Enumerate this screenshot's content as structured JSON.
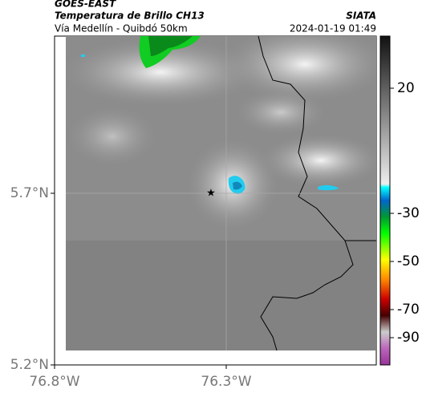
{
  "header": {
    "product": "GOES-EAST",
    "title": "Temperatura de Brillo CH13",
    "subtitle": "Vía Medellín - Quibdó 50km",
    "source": "SIATA",
    "datetime": "2024-01-19 01:49"
  },
  "axes": {
    "latitude_labels": [
      "5.7°N",
      "5.2°N"
    ],
    "longitude_labels": [
      "76.8°W",
      "76.3°W"
    ]
  },
  "colorbar": {
    "tick_labels": [
      20,
      -30,
      -50,
      -70,
      -90
    ]
  }
}
